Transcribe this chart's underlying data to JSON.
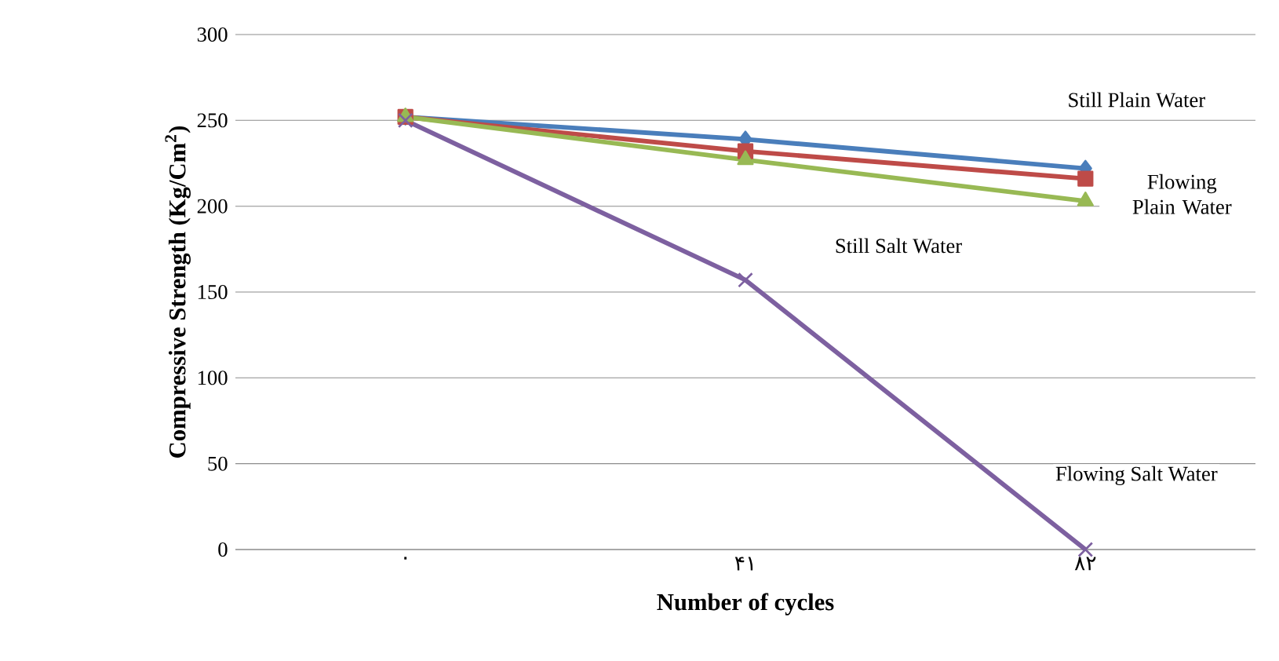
{
  "chart_data": {
    "type": "line",
    "xlabel": "Number of cycles",
    "ylabel": "Compressive Strength (Kg/Cm$^{2}$)",
    "categories": [
      "۰",
      "۴۱",
      "۸۲"
    ],
    "series": [
      {
        "name": "Still Plain Water",
        "color": "#4a7ebb",
        "marker": "diamond",
        "values": [
          252,
          239,
          222
        ]
      },
      {
        "name": "Flowing Plain Water",
        "color": "#be4b48",
        "marker": "square",
        "values": [
          252,
          232,
          216
        ]
      },
      {
        "name": "Still Salt Water",
        "color": "#98b954",
        "marker": "triangle",
        "values": [
          252,
          227,
          203
        ]
      },
      {
        "name": "Flowing Salt Water",
        "color": "#7d60a0",
        "marker": "cross",
        "values": [
          250,
          157,
          0
        ]
      }
    ],
    "ylim": [
      0,
      300
    ],
    "yticks": [
      0,
      50,
      100,
      150,
      200,
      250,
      300
    ],
    "grid": "y",
    "legend": false,
    "line_style": "solid"
  }
}
